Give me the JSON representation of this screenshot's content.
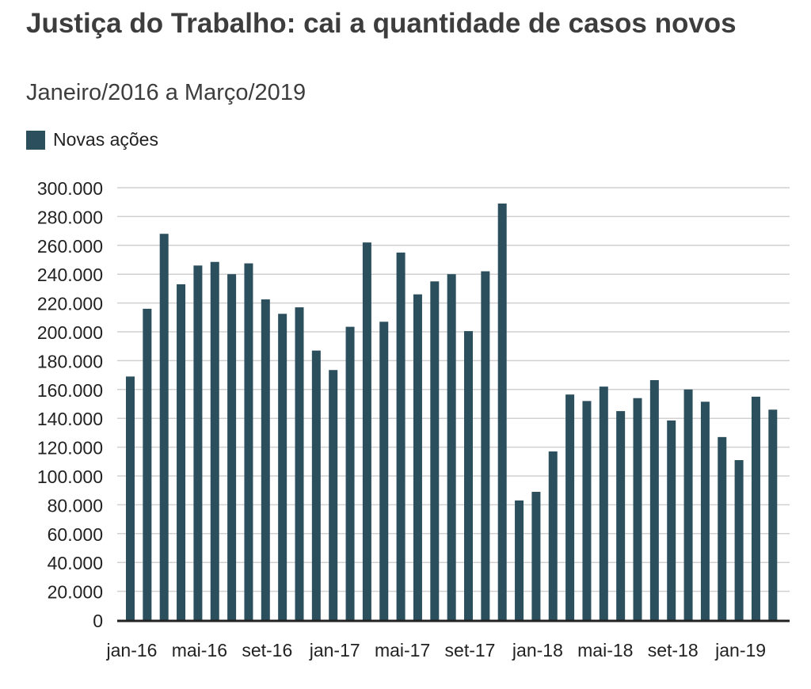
{
  "title": "Justiça do Trabalho: cai a quantidade de casos novos",
  "subtitle": "Janeiro/2016 a Março/2019",
  "footnote": "",
  "colors": {
    "bar": "#2c4f5e",
    "grid": "#d0d0d0",
    "axis": "#222222",
    "text": "#222222"
  },
  "chart_data": {
    "type": "bar",
    "title": "Justiça do Trabalho: cai a quantidade de casos novos",
    "subtitle": "Janeiro/2016 a Março/2019",
    "legend": {
      "position": "top-left"
    },
    "grid": true,
    "ylim": [
      0,
      300000
    ],
    "yticks": [
      0,
      20000,
      40000,
      60000,
      80000,
      100000,
      120000,
      140000,
      160000,
      180000,
      200000,
      220000,
      240000,
      260000,
      280000,
      300000
    ],
    "ytick_labels": [
      "0",
      "20.000",
      "40.000",
      "60.000",
      "80.000",
      "100.000",
      "120.000",
      "140.000",
      "160.000",
      "180.000",
      "200.000",
      "220.000",
      "240.000",
      "260.000",
      "280.000",
      "300.000"
    ],
    "xtick_labels": [
      {
        "index": 0,
        "label": "jan-16"
      },
      {
        "index": 4,
        "label": "mai-16"
      },
      {
        "index": 8,
        "label": "set-16"
      },
      {
        "index": 12,
        "label": "jan-17"
      },
      {
        "index": 16,
        "label": "mai-17"
      },
      {
        "index": 20,
        "label": "set-17"
      },
      {
        "index": 24,
        "label": "jan-18"
      },
      {
        "index": 28,
        "label": "mai-18"
      },
      {
        "index": 32,
        "label": "set-18"
      },
      {
        "index": 36,
        "label": "jan-19"
      }
    ],
    "categories": [
      "jan-16",
      "fev-16",
      "mar-16",
      "abr-16",
      "mai-16",
      "jun-16",
      "jul-16",
      "ago-16",
      "set-16",
      "out-16",
      "nov-16",
      "dez-16",
      "jan-17",
      "fev-17",
      "mar-17",
      "abr-17",
      "mai-17",
      "jun-17",
      "jul-17",
      "ago-17",
      "set-17",
      "out-17",
      "nov-17",
      "dez-17",
      "jan-18",
      "fev-18",
      "mar-18",
      "abr-18",
      "mai-18",
      "jun-18",
      "jul-18",
      "ago-18",
      "set-18",
      "out-18",
      "nov-18",
      "dez-18",
      "jan-19",
      "fev-19",
      "mar-19"
    ],
    "series": [
      {
        "name": "Novas ações",
        "values": [
          169000,
          216000,
          268000,
          233000,
          246000,
          248500,
          240000,
          247500,
          222500,
          212500,
          217000,
          187000,
          173500,
          203500,
          262000,
          207000,
          255000,
          226000,
          235000,
          240000,
          200500,
          242000,
          289000,
          83000,
          89000,
          117000,
          156500,
          152000,
          162000,
          145000,
          154000,
          166500,
          138500,
          160000,
          151500,
          127000,
          111000,
          155000,
          146000
        ]
      }
    ]
  }
}
